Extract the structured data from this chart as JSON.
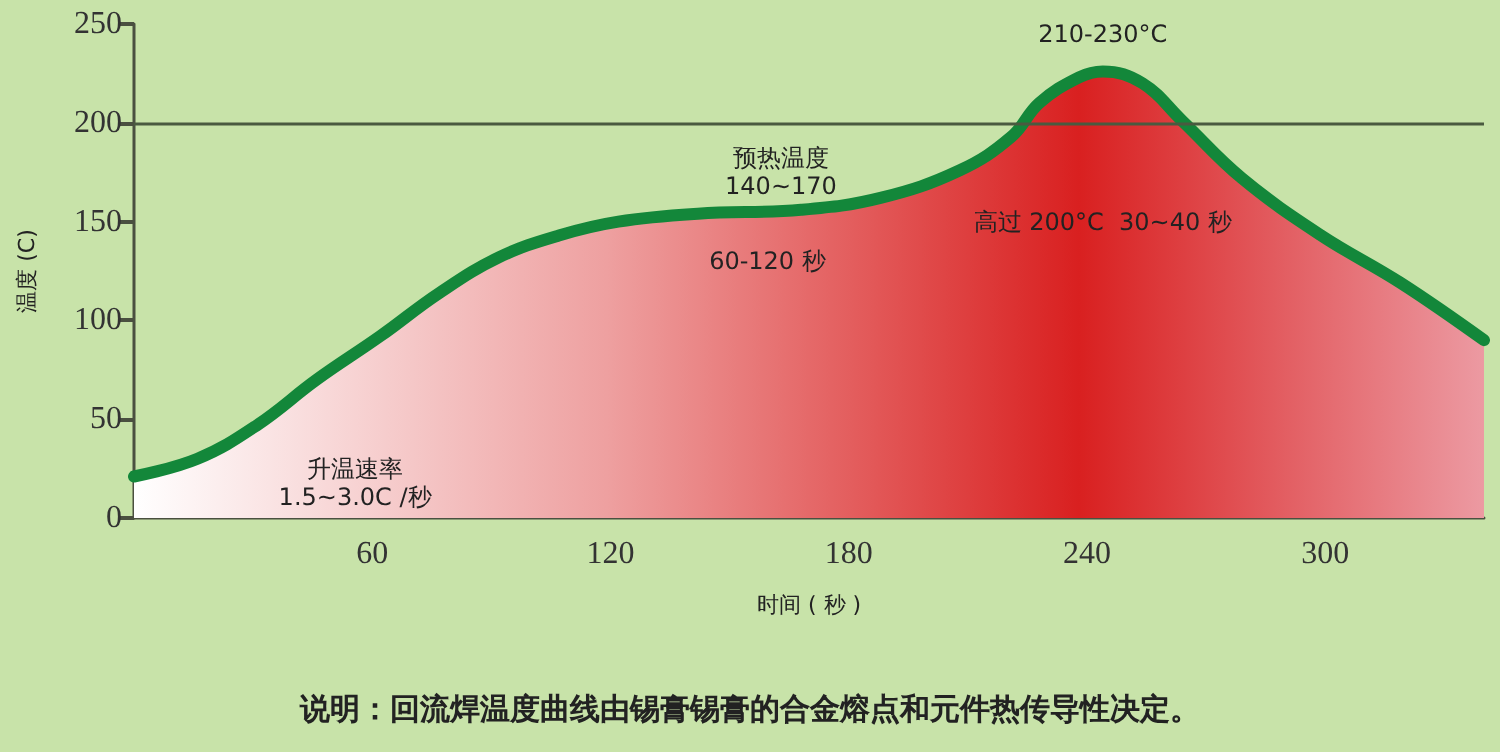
{
  "chart_data": {
    "type": "area",
    "xlabel": "时间 ( 秒 )",
    "ylabel": "温度 (C)",
    "x": [
      0,
      16,
      31,
      46,
      62,
      77,
      92,
      107,
      122,
      142,
      168,
      188,
      208,
      221,
      228,
      238,
      244,
      254,
      264,
      279,
      299,
      319,
      340
    ],
    "series": [
      {
        "color": "#13873a",
        "values": [
          21,
          30,
          47,
          70,
          92,
          114,
          132,
          143,
          150,
          154,
          156,
          162,
          176,
          193,
          210,
          223,
          226,
          220,
          201,
          172,
          143,
          119,
          90
        ]
      }
    ],
    "xlim": [
      0,
      340
    ],
    "xticks": [
      60,
      120,
      180,
      240,
      300
    ],
    "ylim": [
      0,
      250
    ],
    "yticks": [
      0,
      50,
      100,
      150,
      200,
      250
    ],
    "ref_lines": [
      {
        "axis": "y",
        "value": 200,
        "color": "#4a5a40"
      }
    ],
    "marker": "none",
    "line_style": "solid",
    "annotations": [
      "210-230°C",
      "预热温度\n140~170",
      "60-120 秒",
      "高过 200°C  30~40 秒",
      "升温速率\n1.5~3.0C /秒",
      "说明：回流焊温度曲线由锡膏锡膏的合金熔点和元件热传导性决定。"
    ]
  }
}
